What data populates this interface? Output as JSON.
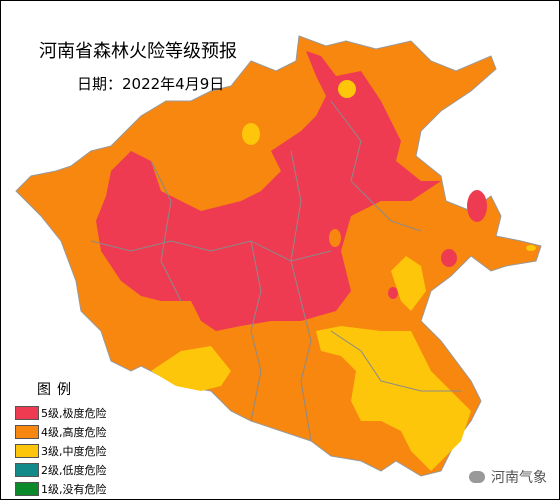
{
  "header": {
    "title": "河南省森林火险等级预报",
    "date": "日期：2022年4月9日"
  },
  "legend": {
    "title": "图例",
    "items": [
      {
        "label": "5级,极度危险",
        "color": "#ee3b52"
      },
      {
        "label": "4级,高度危险",
        "color": "#f7870e"
      },
      {
        "label": "3级,中度危险",
        "color": "#fdc60a"
      },
      {
        "label": "2级,低度危险",
        "color": "#138a8a"
      },
      {
        "label": "1级,没有危险",
        "color": "#0a8a2a"
      }
    ]
  },
  "watermark": "河南气象"
}
